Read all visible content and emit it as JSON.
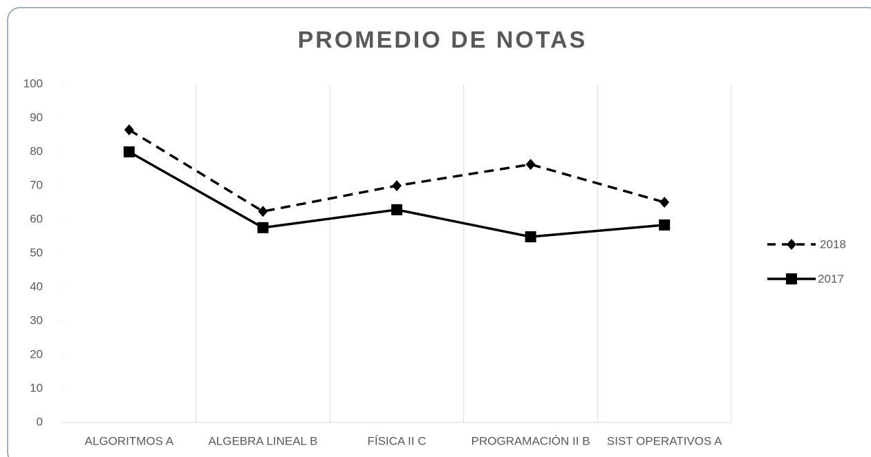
{
  "chart_data": {
    "type": "line",
    "title": "PROMEDIO DE NOTAS",
    "categories": [
      "ALGORITMOS A",
      "ALGEBRA LINEAL B",
      "FÍSICA II C",
      "PROGRAMACIÓN II B",
      "SIST OPERATIVOS A"
    ],
    "series": [
      {
        "name": "2018",
        "color": "#000000",
        "line_style": "dashed",
        "marker": "diamond",
        "values": [
          86.5,
          62.4,
          70,
          76.3,
          65.1
        ]
      },
      {
        "name": "2017",
        "color": "#000000",
        "line_style": "solid",
        "marker": "square",
        "values": [
          80,
          57.6,
          62.9,
          54.9,
          58.4
        ]
      }
    ],
    "ylim": [
      0,
      100
    ],
    "yticks": [
      0,
      10,
      20,
      30,
      40,
      50,
      60,
      70,
      80,
      90,
      100
    ],
    "grid": "vertical",
    "legend": "right"
  }
}
